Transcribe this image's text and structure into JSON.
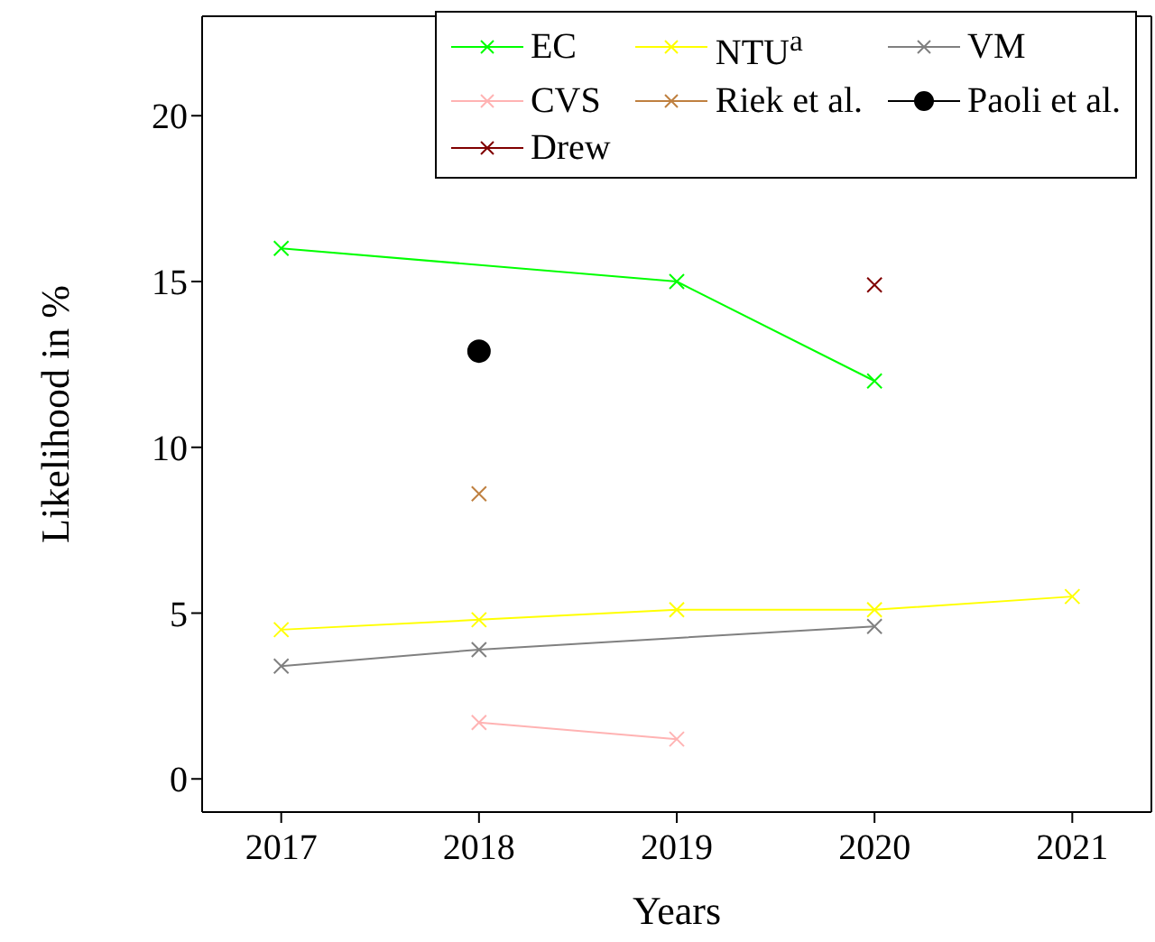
{
  "chart_data": {
    "type": "line",
    "xlabel": "Years",
    "ylabel": "Likelihood in %",
    "xlim": [
      2016.6,
      2021.4
    ],
    "xticks": [
      2017,
      2018,
      2019,
      2020,
      2021
    ],
    "ylim": [
      -1,
      23
    ],
    "yticks": [
      0,
      5,
      10,
      15,
      20
    ],
    "legend": "top right",
    "marker": "cross",
    "series": [
      {
        "name": "EC",
        "color": "#00ff00",
        "x": [
          2017,
          2019,
          2020
        ],
        "values": [
          16,
          15,
          12
        ]
      },
      {
        "name": "NTU$^{a}$",
        "color": "#ffff00",
        "x": [
          2017,
          2018,
          2019,
          2020,
          2021
        ],
        "values": [
          4.5,
          4.8,
          5.1,
          5.1,
          5.5
        ]
      },
      {
        "name": "VM",
        "color": "#808080",
        "x": [
          2017,
          2018,
          2020
        ],
        "values": [
          3.4,
          3.9,
          4.6
        ]
      },
      {
        "name": "CVS",
        "color": "#ffb3b3",
        "x": [
          2018,
          2019
        ],
        "values": [
          1.7,
          1.2
        ]
      },
      {
        "name": "Riek et al.",
        "color": "#bf8040",
        "x": [
          2018
        ],
        "values": [
          8.6
        ]
      },
      {
        "name": "Paoli et al.",
        "color": "#000000",
        "x": [
          2018
        ],
        "values": [
          12.9
        ],
        "marker": "circle"
      },
      {
        "name": "Drew",
        "color": "#800000",
        "x": [
          2020
        ],
        "values": [
          14.9
        ]
      }
    ]
  }
}
